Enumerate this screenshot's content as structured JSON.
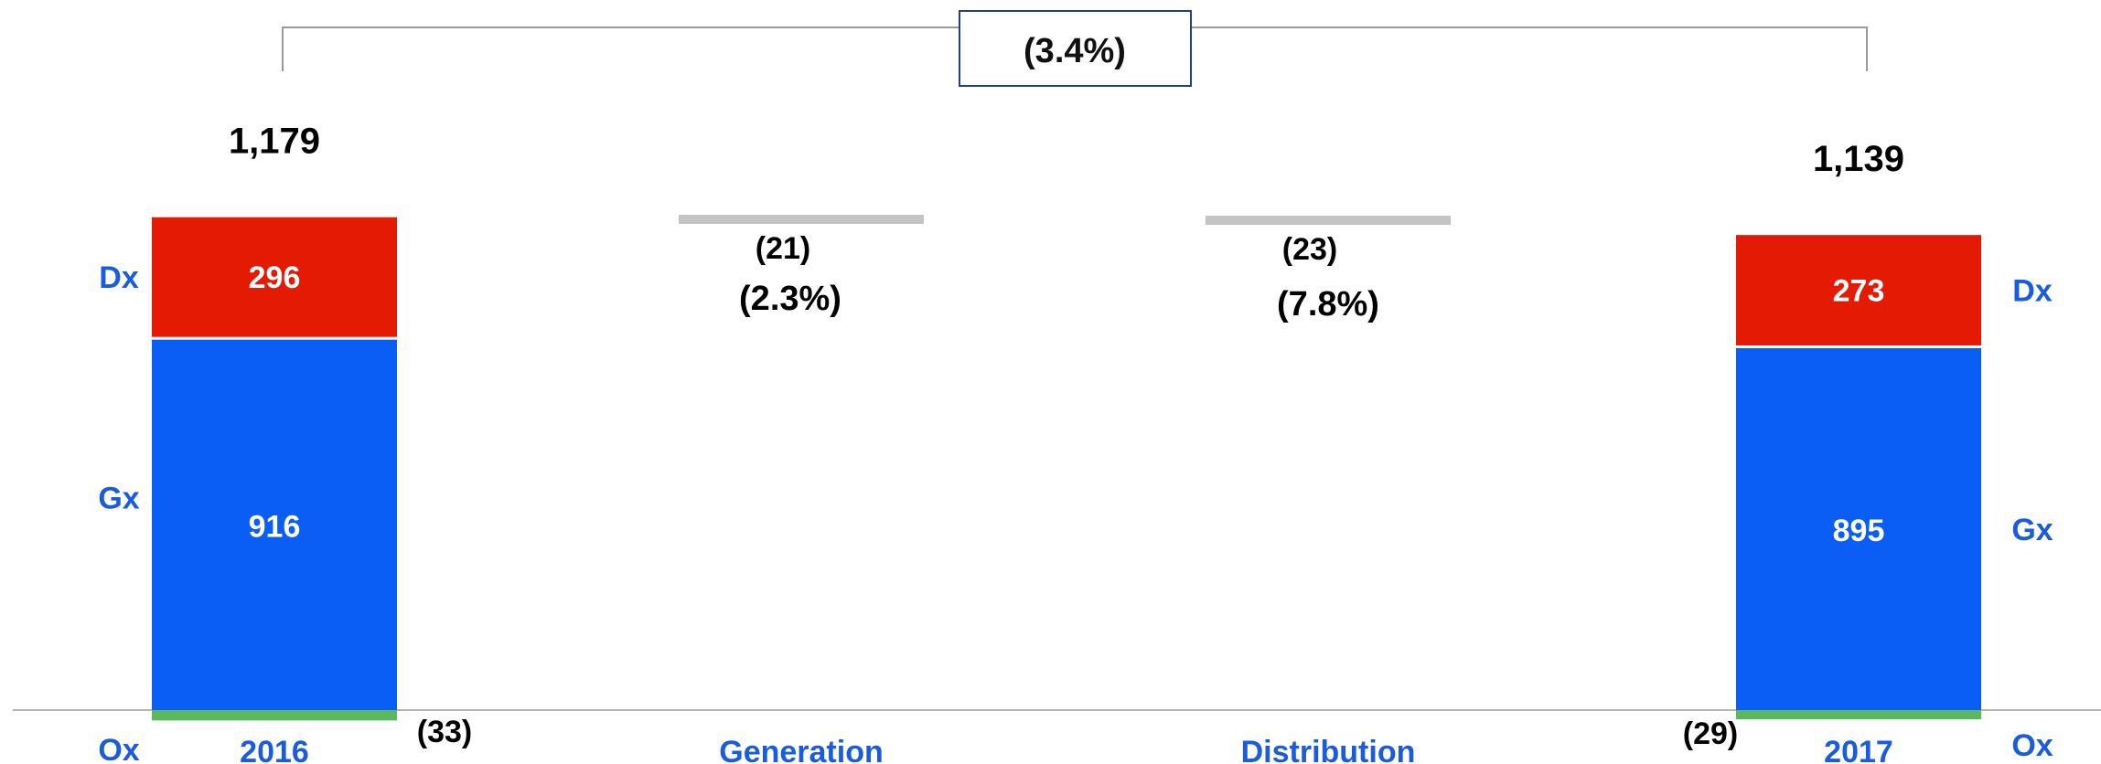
{
  "chart_data": {
    "type": "bar",
    "subtype": "waterfall",
    "categories": [
      "2016",
      "Generation",
      "Distribution",
      "2017"
    ],
    "bars": [
      {
        "category": "2016",
        "total": 1179,
        "total_label": "1,179",
        "segments": [
          {
            "key": "Ox",
            "value": -33,
            "label": "(33)"
          },
          {
            "key": "Gx",
            "value": 916,
            "label": "916"
          },
          {
            "key": "Dx",
            "value": 296,
            "label": "296"
          }
        ]
      },
      {
        "category": "Generation",
        "delta": -21,
        "delta_label": "(21)",
        "pct_label": "(2.3%)"
      },
      {
        "category": "Distribution",
        "delta": -23,
        "delta_label": "(23)",
        "pct_label": "(7.8%)"
      },
      {
        "category": "2017",
        "total": 1139,
        "total_label": "1,139",
        "segments": [
          {
            "key": "Ox",
            "value": -29,
            "label": "(29)"
          },
          {
            "key": "Gx",
            "value": 895,
            "label": "895"
          },
          {
            "key": "Dx",
            "value": 273,
            "label": "273"
          }
        ]
      }
    ],
    "overall_change_label": "(3.4%)",
    "series_labels": {
      "Dx": "Dx",
      "Gx": "Gx",
      "Ox": "Ox"
    },
    "colors": {
      "Dx": "#e51a05",
      "Gx": "#0a5ef5",
      "Ox": "#5cb85c",
      "step": "#c4c4c4",
      "axis_label": "#1a5ce0",
      "text": "#111111",
      "bracket": "#9a9a9a",
      "box_border": "#1f3f8f"
    }
  }
}
